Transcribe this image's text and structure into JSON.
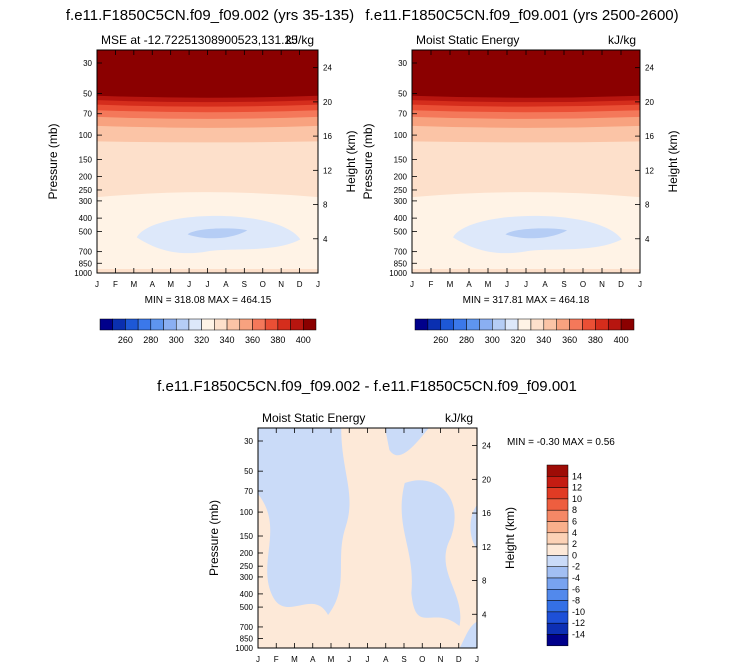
{
  "colors": {
    "background": "#ffffff",
    "abs_palette": [
      "#00008b",
      "#0a2fb0",
      "#1d58d6",
      "#3b78ea",
      "#5e95ef",
      "#8aaff2",
      "#b5cdf5",
      "#dde8fa",
      "#fff3e6",
      "#fde0cb",
      "#fbc4a6",
      "#f8a27f",
      "#f4785a",
      "#ea4f35",
      "#d52d1c",
      "#b7150f",
      "#8b0000"
    ],
    "diff_palette": [
      "#00008b",
      "#0d2fb4",
      "#1e50d8",
      "#3470e6",
      "#5289ec",
      "#78a3f0",
      "#a2bff3",
      "#cadbf8",
      "#fde9d8",
      "#fcd2b6",
      "#f9b08c",
      "#f58866",
      "#ee5e3f",
      "#e13b24",
      "#c51c12",
      "#9e0c06"
    ]
  },
  "chart_data": [
    {
      "type": "heatmap",
      "title": "f.e11.F1850C5CN.f09_f09.002 (yrs 35-135)",
      "subtitle_left": "MSE at -12.72251308900523,131.25",
      "subtitle_right": "kJ/kg",
      "xlabel": "",
      "ylabel": "Pressure (mb)",
      "ylabel_right": "Height (km)",
      "x_ticks": [
        "J",
        "F",
        "M",
        "A",
        "M",
        "J",
        "J",
        "A",
        "S",
        "O",
        "N",
        "D",
        "J"
      ],
      "y_ticks": [
        "30",
        "50",
        "70",
        "100",
        "150",
        "200",
        "250",
        "300",
        "400",
        "500",
        "700",
        "850",
        "1000"
      ],
      "y_ticks_right": [
        "24",
        "20",
        "16",
        "12",
        "8",
        "4"
      ],
      "stats": "MIN = 318.08 MAX = 464.15",
      "colorbar_labels": [
        "260",
        "280",
        "300",
        "320",
        "340",
        "360",
        "380",
        "400"
      ],
      "contour_levels": [
        240,
        250,
        260,
        270,
        280,
        290,
        300,
        310,
        320,
        330,
        340,
        350,
        360,
        370,
        380,
        390,
        400
      ]
    },
    {
      "type": "heatmap",
      "title": "f.e11.F1850C5CN.f09_f09.001 (yrs 2500-2600)",
      "subtitle_left": "Moist Static Energy",
      "subtitle_right": "kJ/kg",
      "xlabel": "",
      "ylabel": "Pressure (mb)",
      "ylabel_right": "Height (km)",
      "x_ticks": [
        "J",
        "F",
        "M",
        "A",
        "M",
        "J",
        "J",
        "A",
        "S",
        "O",
        "N",
        "D",
        "J"
      ],
      "y_ticks": [
        "30",
        "50",
        "70",
        "100",
        "150",
        "200",
        "250",
        "300",
        "400",
        "500",
        "700",
        "850",
        "1000"
      ],
      "y_ticks_right": [
        "24",
        "20",
        "16",
        "12",
        "8",
        "4"
      ],
      "stats": "MIN = 317.81 MAX = 464.18",
      "colorbar_labels": [
        "260",
        "280",
        "300",
        "320",
        "340",
        "360",
        "380",
        "400"
      ],
      "contour_levels": [
        240,
        250,
        260,
        270,
        280,
        290,
        300,
        310,
        320,
        330,
        340,
        350,
        360,
        370,
        380,
        390,
        400
      ]
    },
    {
      "type": "heatmap",
      "title": "f.e11.F1850C5CN.f09_f09.002 - f.e11.F1850C5CN.f09_f09.001",
      "subtitle_left": "Moist Static Energy",
      "subtitle_right": "kJ/kg",
      "xlabel": "",
      "ylabel": "Pressure (mb)",
      "ylabel_right": "Height (km)",
      "x_ticks": [
        "J",
        "F",
        "M",
        "A",
        "M",
        "J",
        "J",
        "A",
        "S",
        "O",
        "N",
        "D",
        "J"
      ],
      "y_ticks": [
        "30",
        "50",
        "70",
        "100",
        "150",
        "200",
        "250",
        "300",
        "400",
        "500",
        "700",
        "850",
        "1000"
      ],
      "y_ticks_right": [
        "24",
        "20",
        "16",
        "12",
        "8",
        "4"
      ],
      "stats": "MIN =  -0.30 MAX =    0.56",
      "colorbar_labels": [
        "14",
        "12",
        "10",
        "8",
        "6",
        "4",
        "2",
        "0",
        "-2",
        "-4",
        "-6",
        "-8",
        "-10",
        "-12",
        "-14"
      ],
      "contour_levels": [
        -16,
        -14,
        -12,
        -10,
        -8,
        -6,
        -4,
        -2,
        0,
        2,
        4,
        6,
        8,
        10,
        12,
        14,
        16
      ]
    }
  ]
}
